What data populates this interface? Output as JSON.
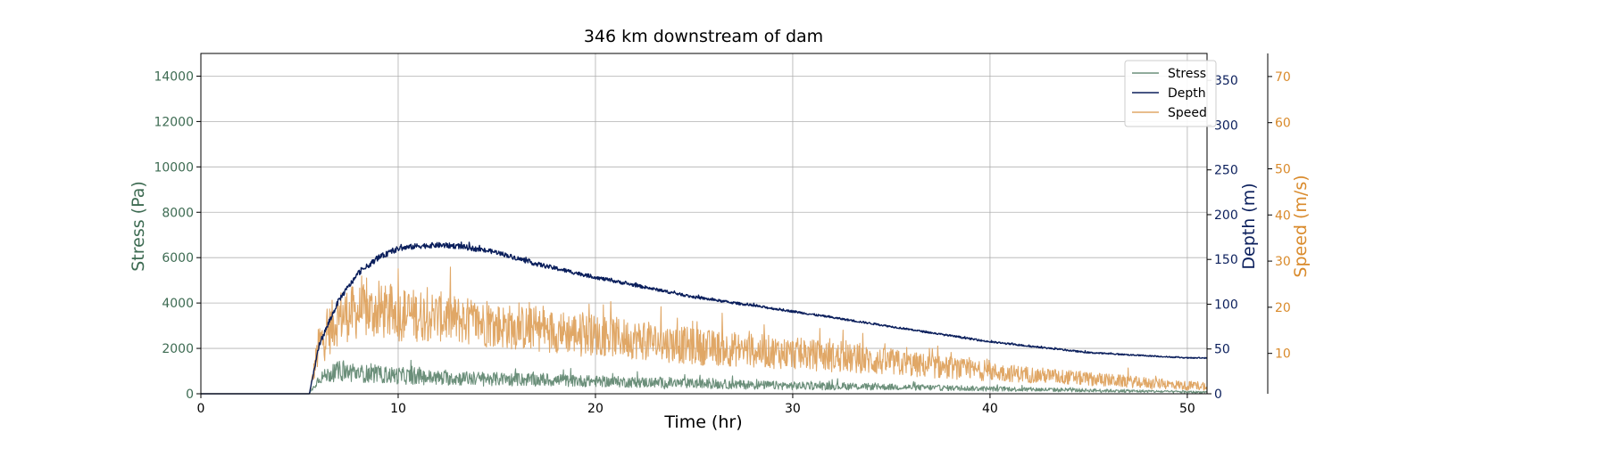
{
  "chart_data": {
    "type": "line",
    "title": "346 km downstream of dam",
    "xlabel": "Time (hr)",
    "xlim": [
      0,
      51
    ],
    "xticks": [
      0,
      10,
      20,
      30,
      40,
      50
    ],
    "grid": true,
    "legend_position": "top-right",
    "axes": {
      "stress": {
        "label": "Stress (Pa)",
        "side": "left",
        "color": "#3d6b52",
        "ylim": [
          0,
          15000
        ],
        "ticks": [
          0,
          2000,
          4000,
          6000,
          8000,
          10000,
          12000,
          14000
        ]
      },
      "depth": {
        "label": "Depth (m)",
        "side": "right",
        "color": "#0b1f5c",
        "ylim": [
          0,
          380
        ],
        "ticks": [
          0,
          50,
          100,
          150,
          200,
          250,
          300,
          350
        ]
      },
      "speed": {
        "label": "Speed (m/s)",
        "side": "right-outer",
        "color": "#d98a2b",
        "ylim": [
          1.25,
          75
        ],
        "ticks": [
          10,
          20,
          30,
          40,
          50,
          60,
          70
        ]
      }
    },
    "series": [
      {
        "name": "Stress",
        "axis": "stress",
        "color": "#6b8f7a",
        "x": [
          0,
          5.5,
          6,
          7,
          8,
          9,
          10,
          12,
          15,
          20,
          25,
          30,
          35,
          40,
          45,
          50,
          51
        ],
        "y": [
          0,
          0,
          700,
          1000,
          900,
          850,
          800,
          700,
          650,
          550,
          450,
          350,
          300,
          220,
          150,
          80,
          70
        ],
        "noise": [
          0,
          0,
          250,
          450,
          400,
          380,
          380,
          330,
          300,
          250,
          220,
          180,
          140,
          110,
          80,
          50,
          40
        ]
      },
      {
        "name": "Depth",
        "axis": "depth",
        "color": "#0b1f5c",
        "x": [
          0,
          5.5,
          6,
          7,
          8,
          9,
          10,
          11,
          12,
          13,
          15,
          17,
          20,
          25,
          30,
          35,
          40,
          45,
          50,
          51
        ],
        "y": [
          0,
          0,
          55,
          105,
          135,
          152,
          162,
          165,
          166,
          165,
          158,
          145,
          130,
          108,
          92,
          75,
          58,
          46,
          40,
          40
        ],
        "noise": [
          0,
          0,
          3,
          3,
          3,
          3,
          3,
          3,
          3,
          3,
          2.5,
          2.5,
          2,
          1.5,
          1.2,
          1,
          1,
          0.8,
          0.6,
          0.6
        ]
      },
      {
        "name": "Speed",
        "axis": "speed",
        "color": "#e0a766",
        "x": [
          0,
          5.5,
          6,
          7,
          8,
          9,
          10,
          12,
          15,
          20,
          25,
          30,
          35,
          40,
          45,
          50,
          51
        ],
        "y": [
          1.25,
          1.25,
          12,
          18,
          19,
          19,
          18.5,
          18,
          16,
          14,
          11.5,
          10,
          8,
          6,
          4.5,
          3,
          3
        ],
        "noise": [
          0,
          0,
          5,
          6,
          6,
          6,
          6,
          5.5,
          5,
          4.5,
          4,
          3.5,
          3,
          2,
          1.5,
          1,
          1
        ]
      }
    ]
  }
}
